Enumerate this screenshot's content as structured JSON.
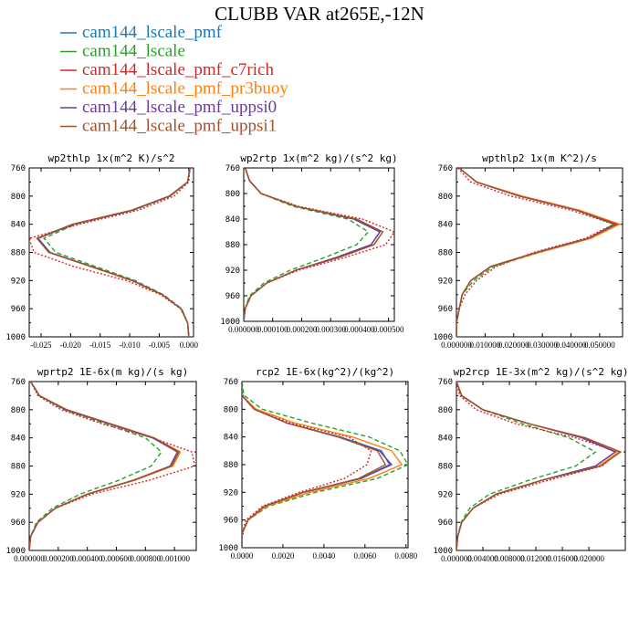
{
  "chart_data": {
    "type": "line",
    "title": "CLUBB VAR at265E,-12N",
    "legend": {
      "placement": "top-left",
      "entries": [
        {
          "name": "cam144_lscale_pmf",
          "color": "#1f77b4",
          "dash": "solid"
        },
        {
          "name": "cam144_lscale",
          "color": "#2ca02c",
          "dash": "dashed"
        },
        {
          "name": "cam144_lscale_pmf_c7rich",
          "color": "#d62728",
          "dash": "dotted"
        },
        {
          "name": "cam144_lscale_pmf_pr3buoy",
          "color": "#ff7f0e",
          "dash": "solid"
        },
        {
          "name": "cam144_lscale_pmf_uppsi0",
          "color": "#6a3d9a",
          "dash": "solid"
        },
        {
          "name": "cam144_lscale_pmf_uppsi1",
          "color": "#a0522d",
          "dash": "solid"
        }
      ]
    },
    "y": [
      760,
      780,
      800,
      820,
      840,
      860,
      880,
      900,
      920,
      940,
      960,
      980,
      1000
    ],
    "panels": [
      {
        "title": "wp2thlp  1x(m^2 K)/s^2",
        "xlim": [
          -0.027,
          0.0008
        ],
        "ylim": [
          760,
          1000
        ],
        "xticks": [
          -0.025,
          -0.02,
          -0.015,
          -0.01,
          -0.005,
          0.0
        ],
        "xtick_labels": [
          "-0.025",
          "-0.020",
          "-0.015",
          "-0.010",
          "-0.005",
          "0.000"
        ],
        "yticks": [
          760,
          800,
          840,
          880,
          920,
          960,
          1000
        ],
        "series": [
          [
            0.0002,
            -0.0002,
            -0.0032,
            -0.0095,
            -0.0195,
            -0.0255,
            -0.0235,
            -0.0165,
            -0.0095,
            -0.0045,
            -0.0013,
            -0.0002,
            0.0
          ],
          [
            0.0002,
            -0.0002,
            -0.0031,
            -0.0093,
            -0.0192,
            -0.0245,
            -0.0225,
            -0.0158,
            -0.0091,
            -0.0043,
            -0.0012,
            -0.0002,
            0.0
          ],
          [
            0.0002,
            0.0,
            -0.0025,
            -0.0085,
            -0.0185,
            -0.027,
            -0.0262,
            -0.0195,
            -0.0105,
            -0.0048,
            -0.0014,
            -0.0002,
            0.0
          ],
          [
            0.0002,
            -0.0002,
            -0.0033,
            -0.0096,
            -0.0196,
            -0.0256,
            -0.0236,
            -0.0166,
            -0.0096,
            -0.0045,
            -0.0013,
            -0.0002,
            0.0
          ],
          [
            0.0002,
            -0.0002,
            -0.0032,
            -0.0095,
            -0.0195,
            -0.0255,
            -0.0235,
            -0.0165,
            -0.0095,
            -0.0045,
            -0.0013,
            -0.0002,
            0.0
          ],
          [
            0.0002,
            -0.0002,
            -0.0033,
            -0.0097,
            -0.0197,
            -0.0257,
            -0.0237,
            -0.0166,
            -0.0096,
            -0.0045,
            -0.0013,
            -0.0002,
            0.0
          ]
        ]
      },
      {
        "title": "wp2rtp  1x(m^2 kg)/(s^2 kg)",
        "xlim": [
          0.0,
          0.00052
        ],
        "ylim": [
          760,
          1000
        ],
        "xticks": [
          0.0,
          0.0001,
          0.0002,
          0.0003,
          0.0004,
          0.0005
        ],
        "xtick_labels": [
          "0.000000",
          "0.000100",
          "0.000200",
          "0.000300",
          "0.000400",
          "0.000500"
        ],
        "yticks": [
          760,
          800,
          840,
          880,
          920,
          960,
          1000
        ],
        "series": [
          [
            5e-06,
            2e-05,
            6e-05,
            0.00018,
            0.00038,
            0.00047,
            0.00044,
            0.00032,
            0.00018,
            8e-05,
            2.5e-05,
            5e-06,
            0.0
          ],
          [
            5e-06,
            2e-05,
            6e-05,
            0.00017,
            0.00036,
            0.00043,
            0.00039,
            0.00028,
            0.00016,
            7e-05,
            2e-05,
            5e-06,
            0.0
          ],
          [
            5e-06,
            2e-05,
            6e-05,
            0.00019,
            0.00041,
            0.00052,
            0.00049,
            0.00035,
            0.00019,
            8e-05,
            2.5e-05,
            5e-06,
            0.0
          ],
          [
            5e-06,
            2e-05,
            6e-05,
            0.00018,
            0.00039,
            0.00048,
            0.00045,
            0.00032,
            0.00018,
            8e-05,
            2.5e-05,
            5e-06,
            0.0
          ],
          [
            5e-06,
            2e-05,
            6e-05,
            0.00018,
            0.00038,
            0.00047,
            0.00044,
            0.00032,
            0.00018,
            8e-05,
            2.5e-05,
            5e-06,
            0.0
          ],
          [
            5e-06,
            2e-05,
            6e-05,
            0.00018,
            0.00039,
            0.00048,
            0.00045,
            0.00033,
            0.00018,
            8e-05,
            2.5e-05,
            5e-06,
            0.0
          ]
        ]
      },
      {
        "title": "wpthlp2  1x(m K^2)/s",
        "xlim": [
          0.0,
          0.058
        ],
        "ylim": [
          760,
          1000
        ],
        "xticks": [
          0.0,
          0.01,
          0.02,
          0.03,
          0.04,
          0.05
        ],
        "xtick_labels": [
          "0.000000",
          "0.010000",
          "0.020000",
          "0.030000",
          "0.040000",
          "0.050000"
        ],
        "yticks": [
          760,
          800,
          840,
          880,
          920,
          960,
          1000
        ],
        "series": [
          [
            0.001,
            0.007,
            0.022,
            0.042,
            0.055,
            0.046,
            0.028,
            0.012,
            0.005,
            0.002,
            0.001,
            0.0,
            0.0
          ],
          [
            0.001,
            0.007,
            0.022,
            0.042,
            0.055,
            0.047,
            0.029,
            0.013,
            0.006,
            0.002,
            0.001,
            0.0,
            0.0
          ],
          [
            0.0005,
            0.005,
            0.019,
            0.04,
            0.055,
            0.045,
            0.027,
            0.014,
            0.007,
            0.003,
            0.001,
            0.0,
            0.0
          ],
          [
            0.001,
            0.007,
            0.023,
            0.043,
            0.057,
            0.047,
            0.029,
            0.012,
            0.005,
            0.002,
            0.001,
            0.0,
            0.0
          ],
          [
            0.001,
            0.007,
            0.022,
            0.042,
            0.056,
            0.046,
            0.028,
            0.012,
            0.005,
            0.002,
            0.001,
            0.0,
            0.0
          ],
          [
            0.001,
            0.007,
            0.022,
            0.042,
            0.056,
            0.046,
            0.028,
            0.012,
            0.005,
            0.002,
            0.001,
            0.0,
            0.0
          ]
        ]
      },
      {
        "title": "wprtp2  1E-6x(m kg)/(s kg)",
        "xlim": [
          0.0,
          1.15e-06
        ],
        "ylim": [
          760,
          1000
        ],
        "xticks": [
          0.0,
          2e-07,
          4e-07,
          6e-07,
          8e-07,
          1e-06
        ],
        "xtick_labels": [
          "0.000000",
          "0.000200",
          "0.000400",
          "0.000600",
          "0.000800",
          "0.001000"
        ],
        "yticks": [
          760,
          800,
          840,
          880,
          920,
          960,
          1000
        ],
        "series": [
          [
            1e-08,
            7e-08,
            2.5e-07,
            5.5e-07,
            8.5e-07,
            1.03e-06,
            9.8e-07,
            7.2e-07,
            4e-07,
            1.8e-07,
            6e-08,
            1e-08,
            0.0
          ],
          [
            1e-08,
            7e-08,
            2.4e-07,
            5.2e-07,
            8e-07,
            9.1e-07,
            8.4e-07,
            6.2e-07,
            3.5e-07,
            1.6e-07,
            5e-08,
            1e-08,
            0.0
          ],
          [
            1e-08,
            6e-08,
            2.2e-07,
            5e-07,
            8.5e-07,
            1.12e-06,
            1.14e-06,
            8.3e-07,
            4.3e-07,
            1.8e-07,
            6e-08,
            1e-08,
            0.0
          ],
          [
            1e-08,
            7e-08,
            2.5e-07,
            5.6e-07,
            8.6e-07,
            1.04e-06,
            9.9e-07,
            7.3e-07,
            4e-07,
            1.8e-07,
            6e-08,
            1e-08,
            0.0
          ],
          [
            1e-08,
            7e-08,
            2.5e-07,
            5.5e-07,
            8.5e-07,
            1.02e-06,
            9.7e-07,
            7.2e-07,
            4e-07,
            1.8e-07,
            6e-08,
            1e-08,
            0.0
          ],
          [
            1e-08,
            7e-08,
            2.6e-07,
            5.6e-07,
            8.6e-07,
            1.03e-06,
            9.8e-07,
            7.2e-07,
            4e-07,
            1.8e-07,
            6e-08,
            1e-08,
            0.0
          ]
        ]
      },
      {
        "title": "rcp2  1E-6x(kg^2)/(kg^2)",
        "xlim": [
          0.0,
          0.0081
        ],
        "ylim": [
          760,
          1000
        ],
        "xticks": [
          0.0,
          0.002,
          0.004,
          0.006,
          0.008
        ],
        "xtick_labels": [
          "0.0000",
          "0.0020",
          "0.0040",
          "0.0060",
          "0.0080"
        ],
        "yticks": [
          760,
          800,
          840,
          880,
          920,
          960,
          1000
        ],
        "series": [
          [
            0.0,
            0.0,
            0.0006,
            0.0022,
            0.0048,
            0.0068,
            0.0072,
            0.0058,
            0.003,
            0.0011,
            0.0003,
            0.0,
            0.0
          ],
          [
            0.0,
            0.0001,
            0.001,
            0.0034,
            0.0062,
            0.0077,
            0.0081,
            0.0066,
            0.0036,
            0.0013,
            0.0003,
            0.0,
            0.0
          ],
          [
            0.0,
            0.0,
            0.0006,
            0.0024,
            0.0052,
            0.0063,
            0.0061,
            0.005,
            0.0028,
            0.001,
            0.0002,
            0.0,
            0.0
          ],
          [
            0.0,
            0.0,
            0.0007,
            0.0026,
            0.0054,
            0.0073,
            0.0078,
            0.0062,
            0.0033,
            0.0012,
            0.0003,
            0.0,
            0.0
          ],
          [
            0.0,
            0.0,
            0.0006,
            0.0022,
            0.0047,
            0.0067,
            0.0073,
            0.0058,
            0.003,
            0.0011,
            0.0003,
            0.0,
            0.0
          ],
          [
            0.0,
            0.0,
            0.0006,
            0.0022,
            0.0047,
            0.0066,
            0.007,
            0.0057,
            0.003,
            0.0011,
            0.0003,
            0.0,
            0.0
          ]
        ]
      },
      {
        "title": "wp2rcp  1E-3x(m^2 kg)/(s^2 kg)",
        "xlim": [
          0.0,
          2.55e-05
        ],
        "ylim": [
          760,
          1000
        ],
        "xticks": [
          0.0,
          4e-06,
          8e-06,
          1.2e-05,
          1.6e-05,
          2e-05
        ],
        "xtick_labels": [
          "0.000000",
          "0.004000",
          "0.008000",
          "0.012000",
          "0.016000",
          "0.020000"
        ],
        "yticks": [
          760,
          800,
          840,
          880,
          920,
          960,
          1000
        ],
        "series": [
          [
            0.0,
            8e-07,
            4e-06,
            1.1e-05,
            1.9e-05,
            2.4e-05,
            2.1e-05,
            1.3e-05,
            6e-06,
            2.5e-06,
            8e-07,
            2e-07,
            0.0
          ],
          [
            0.0,
            7e-07,
            4e-06,
            1e-05,
            1.7e-05,
            2.1e-05,
            1.8e-05,
            1.1e-05,
            5e-06,
            2e-06,
            7e-07,
            2e-07,
            0.0
          ],
          [
            0.0,
            5e-07,
            3e-06,
            9e-06,
            1.8e-05,
            2.45e-05,
            2.2e-05,
            1.4e-05,
            6.5e-06,
            2.5e-06,
            8e-07,
            2e-07,
            0.0
          ],
          [
            0.0,
            8e-07,
            4e-06,
            1.1e-05,
            1.95e-05,
            2.45e-05,
            2.15e-05,
            1.3e-05,
            6e-06,
            2.5e-06,
            8e-07,
            2e-07,
            0.0
          ],
          [
            0.0,
            8e-07,
            4e-06,
            1.1e-05,
            1.9e-05,
            2.4e-05,
            2.1e-05,
            1.3e-05,
            6e-06,
            2.5e-06,
            8e-07,
            2e-07,
            0.0
          ],
          [
            0.0,
            8e-07,
            4e-06,
            1.1e-05,
            1.95e-05,
            2.48e-05,
            2.18e-05,
            1.3e-05,
            6e-06,
            2.5e-06,
            8e-07,
            2e-07,
            0.0
          ]
        ]
      }
    ]
  }
}
